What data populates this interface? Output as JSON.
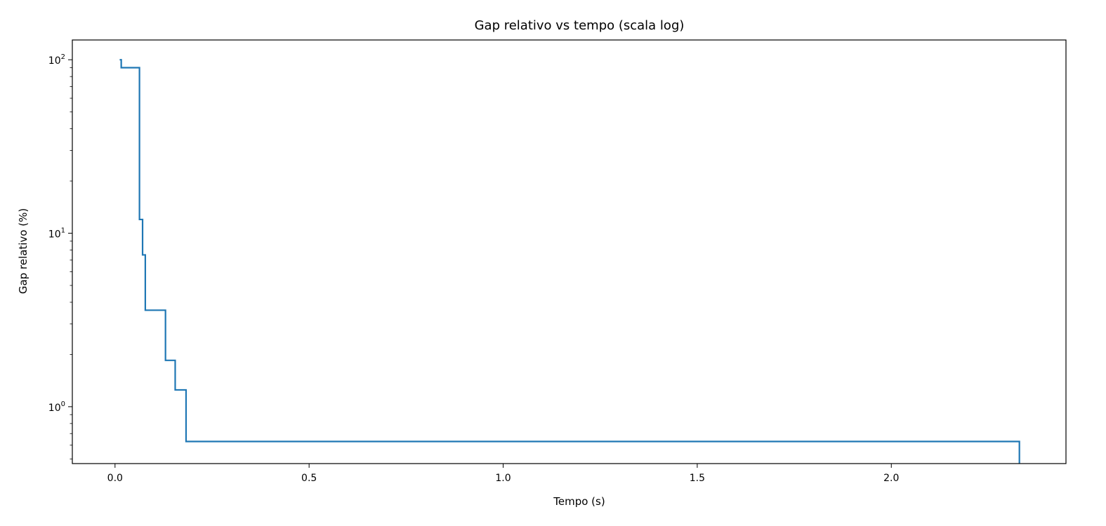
{
  "chart_data": {
    "type": "line",
    "title": "Gap relativo vs tempo (scala log)",
    "xlabel": "Tempo (s)",
    "ylabel": "Gap relativo (%)",
    "y_scale": "log",
    "xlim": [
      -0.11,
      2.45
    ],
    "ylim": [
      0.47,
      130
    ],
    "grid": false,
    "legend": "none",
    "x_ticks": [
      {
        "value": 0.0,
        "label": "0.0"
      },
      {
        "value": 0.5,
        "label": "0.5"
      },
      {
        "value": 1.0,
        "label": "1.0"
      },
      {
        "value": 1.5,
        "label": "1.5"
      },
      {
        "value": 2.0,
        "label": "2.0"
      }
    ],
    "y_ticks": [
      {
        "value": 1,
        "base": "10",
        "exp": "0"
      },
      {
        "value": 10,
        "base": "10",
        "exp": "1"
      },
      {
        "value": 100,
        "base": "10",
        "exp": "2"
      }
    ],
    "series": [
      {
        "color": "#1f77b4",
        "step": "post",
        "points": [
          [
            0.012,
            100
          ],
          [
            0.016,
            90
          ],
          [
            0.063,
            12
          ],
          [
            0.071,
            7.5
          ],
          [
            0.078,
            3.6
          ],
          [
            0.13,
            1.85
          ],
          [
            0.155,
            1.25
          ],
          [
            0.183,
            0.63
          ],
          [
            2.33,
            0.47
          ]
        ]
      }
    ]
  }
}
